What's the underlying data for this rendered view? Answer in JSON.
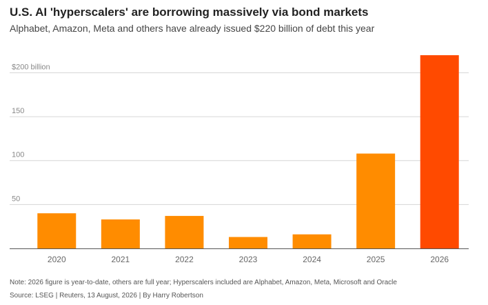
{
  "title": "U.S. AI 'hyperscalers' are borrowing massively via bond markets",
  "subtitle": "Alphabet, Amazon, Meta and others have already issued $220 billion of debt this year",
  "note": "Note: 2026 figure is year-to-date, others are full year; Hyperscalers included are Alphabet, Amazon, Meta, Microsoft and Oracle",
  "source": "Source: LSEG | Reuters, 13 August, 2026 | By Harry Robertson",
  "colors": {
    "bar": "#FF8C00",
    "highlight": "#FF4A00",
    "grid": "#d6d6d6",
    "axis": "#555555",
    "tick": "#888888"
  },
  "chart_data": {
    "type": "bar",
    "categories": [
      "2020",
      "2021",
      "2022",
      "2023",
      "2024",
      "2025",
      "2026"
    ],
    "values": [
      40,
      33,
      37,
      13,
      16,
      108,
      220
    ],
    "highlight_category": "2026",
    "ytick_labels": [
      "$200 billion",
      "150",
      "100",
      "50"
    ],
    "ytick_values": [
      200,
      150,
      100,
      50
    ],
    "ylim": [
      0,
      220
    ],
    "grid": true
  }
}
